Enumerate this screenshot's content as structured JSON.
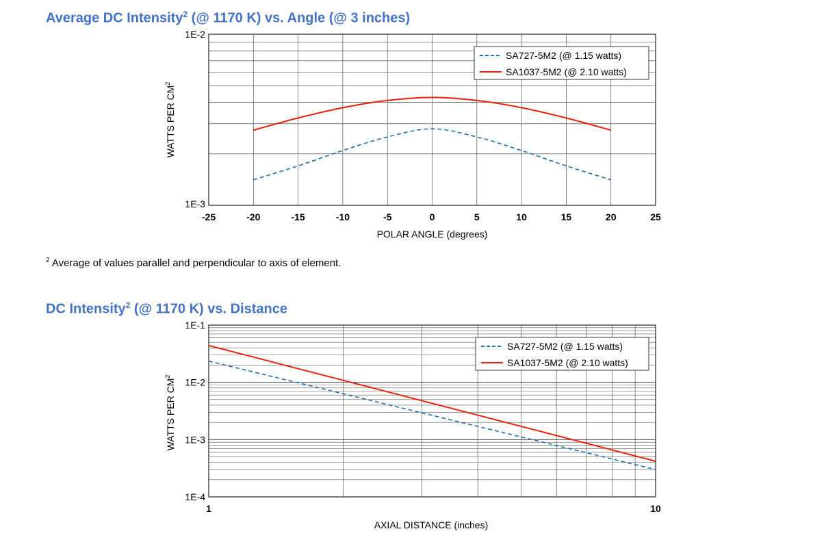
{
  "titles": {
    "chart1": "Average DC Intensity",
    "chart1_sup": "2",
    "chart1_rest": " (@ 1170 K) vs. Angle (@ 3 inches)",
    "chart2": "DC Intensity",
    "chart2_sup": "2",
    "chart2_rest": " (@ 1170 K) vs. Distance"
  },
  "footnote": {
    "marker": "2",
    "text": " Average of values parallel and perpendicular to axis of element."
  },
  "colors": {
    "series1": "#1f6fb5",
    "series2": "#e8200c",
    "title": "#4472c4"
  },
  "chart_data": [
    {
      "type": "line",
      "xlabel": "POLAR ANGLE (degrees)",
      "ylabel": "WATTS PER CM",
      "ylabel_sup": "2",
      "xlim": [
        -25,
        25
      ],
      "ylim": [
        0.001,
        0.01
      ],
      "yscale": "log",
      "xticks": [
        "-25",
        "-20",
        "-15",
        "-10",
        "-5",
        "0",
        "5",
        "10",
        "15",
        "20",
        "25"
      ],
      "yticks": [
        "1E-2",
        "1E-3"
      ],
      "grid": true,
      "legend_position": "top-right",
      "series": [
        {
          "name": "SA727-5M2 (@ 1.15 watts)",
          "style": "dashed",
          "x": [
            -20,
            -15,
            -10,
            -5,
            0,
            5,
            10,
            15,
            20
          ],
          "y": [
            0.00141,
            0.0017,
            0.00209,
            0.00251,
            0.0028,
            0.00251,
            0.00209,
            0.0017,
            0.00141
          ]
        },
        {
          "name": "SA1037-5M2 (@ 2.10 watts)",
          "style": "solid",
          "x": [
            -20,
            -15,
            -10,
            -5,
            0,
            5,
            10,
            15,
            20
          ],
          "y": [
            0.00275,
            0.00324,
            0.00372,
            0.0041,
            0.00427,
            0.0041,
            0.00372,
            0.00324,
            0.00275
          ]
        }
      ]
    },
    {
      "type": "line",
      "xlabel": "AXIAL DISTANCE (inches)",
      "ylabel": "WATTS PER CM",
      "ylabel_sup": "2",
      "xlim": [
        1,
        10
      ],
      "ylim": [
        0.0001,
        0.1
      ],
      "xscale": "log",
      "yscale": "log",
      "xticks": [
        "1",
        "10"
      ],
      "yticks": [
        "1E-1",
        "1E-2",
        "1E-3",
        "1E-4"
      ],
      "grid": true,
      "legend_position": "top-right",
      "series": [
        {
          "name": "SA727-5M2 (@ 1.15 watts)",
          "style": "dashed",
          "x": [
            1,
            10
          ],
          "y": [
            0.0235,
            0.0003
          ]
        },
        {
          "name": "SA1037-5M2 (@ 2.10 watts)",
          "style": "solid",
          "x": [
            1,
            10
          ],
          "y": [
            0.044,
            0.00042
          ]
        }
      ]
    }
  ]
}
